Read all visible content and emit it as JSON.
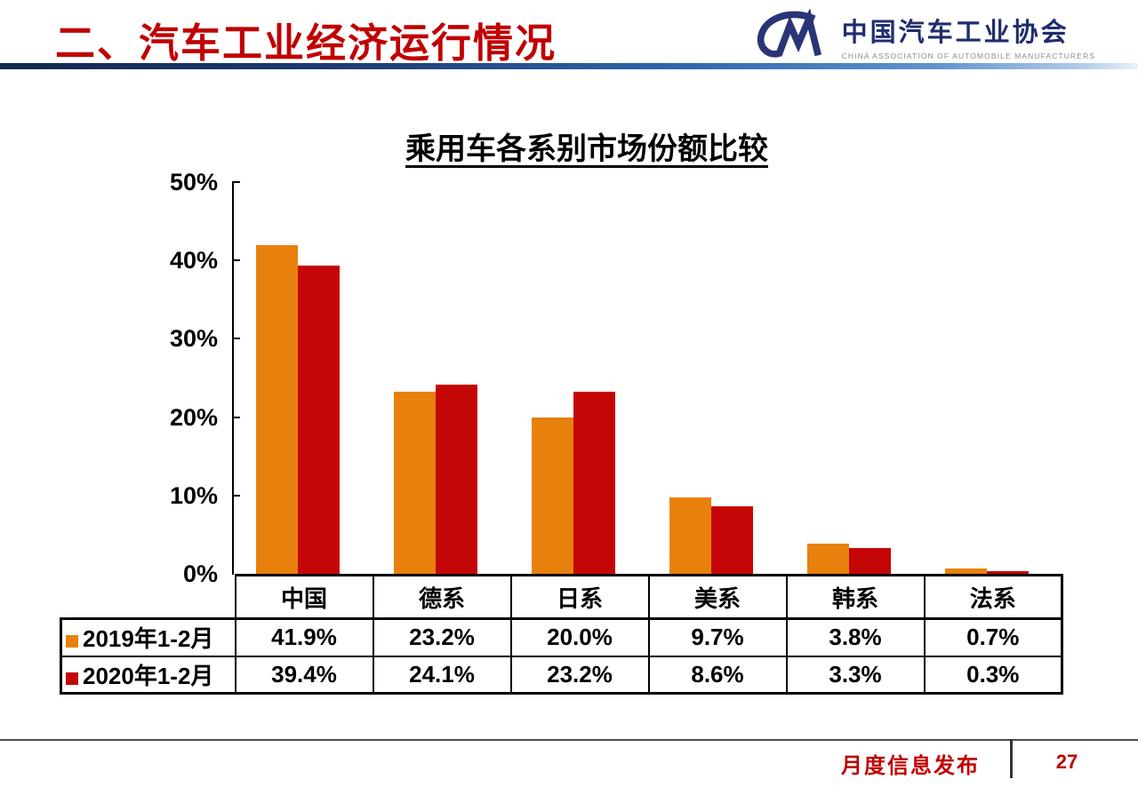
{
  "header": {
    "title": "二、汽车工业经济运行情况",
    "logo": {
      "org_cn": "中国汽车工业协会",
      "org_en": "CHINA ASSOCIATION OF AUTOMOBILE MANUFACTURERS"
    }
  },
  "chart_data": {
    "type": "bar",
    "title": "乘用车各系别市场份额比较",
    "categories": [
      "中国",
      "德系",
      "日系",
      "美系",
      "韩系",
      "法系"
    ],
    "series": [
      {
        "name": "2019年1-2月",
        "color": "#E8800D",
        "values": [
          41.9,
          23.2,
          20.0,
          9.7,
          3.8,
          0.7
        ]
      },
      {
        "name": "2020年1-2月",
        "color": "#C40606",
        "values": [
          39.4,
          24.1,
          23.2,
          8.6,
          3.3,
          0.3
        ]
      }
    ],
    "xlabel": "",
    "ylabel": "",
    "ylim": [
      0,
      50
    ],
    "yticks": [
      "0%",
      "10%",
      "20%",
      "30%",
      "40%",
      "50%"
    ],
    "grid": false,
    "legend_position": "table-left"
  },
  "table": {
    "columns": [
      "中国",
      "德系",
      "日系",
      "美系",
      "韩系",
      "法系"
    ],
    "row_labels": [
      "2019年1-2月",
      "2020年1-2月"
    ],
    "rows": [
      [
        "41.9%",
        "23.2%",
        "20.0%",
        "9.7%",
        "3.8%",
        "0.7%"
      ],
      [
        "39.4%",
        "24.1%",
        "23.2%",
        "8.6%",
        "3.3%",
        "0.3%"
      ]
    ]
  },
  "footer": {
    "label": "月度信息发布",
    "page": "27"
  },
  "colors": {
    "series_2019": "#E8800D",
    "series_2020": "#C40606",
    "title_red": "#C00000",
    "logo_navy": "#2A3576",
    "rule_gradient_start": "#14284F",
    "rule_gradient_end": "#E9F1FA"
  }
}
